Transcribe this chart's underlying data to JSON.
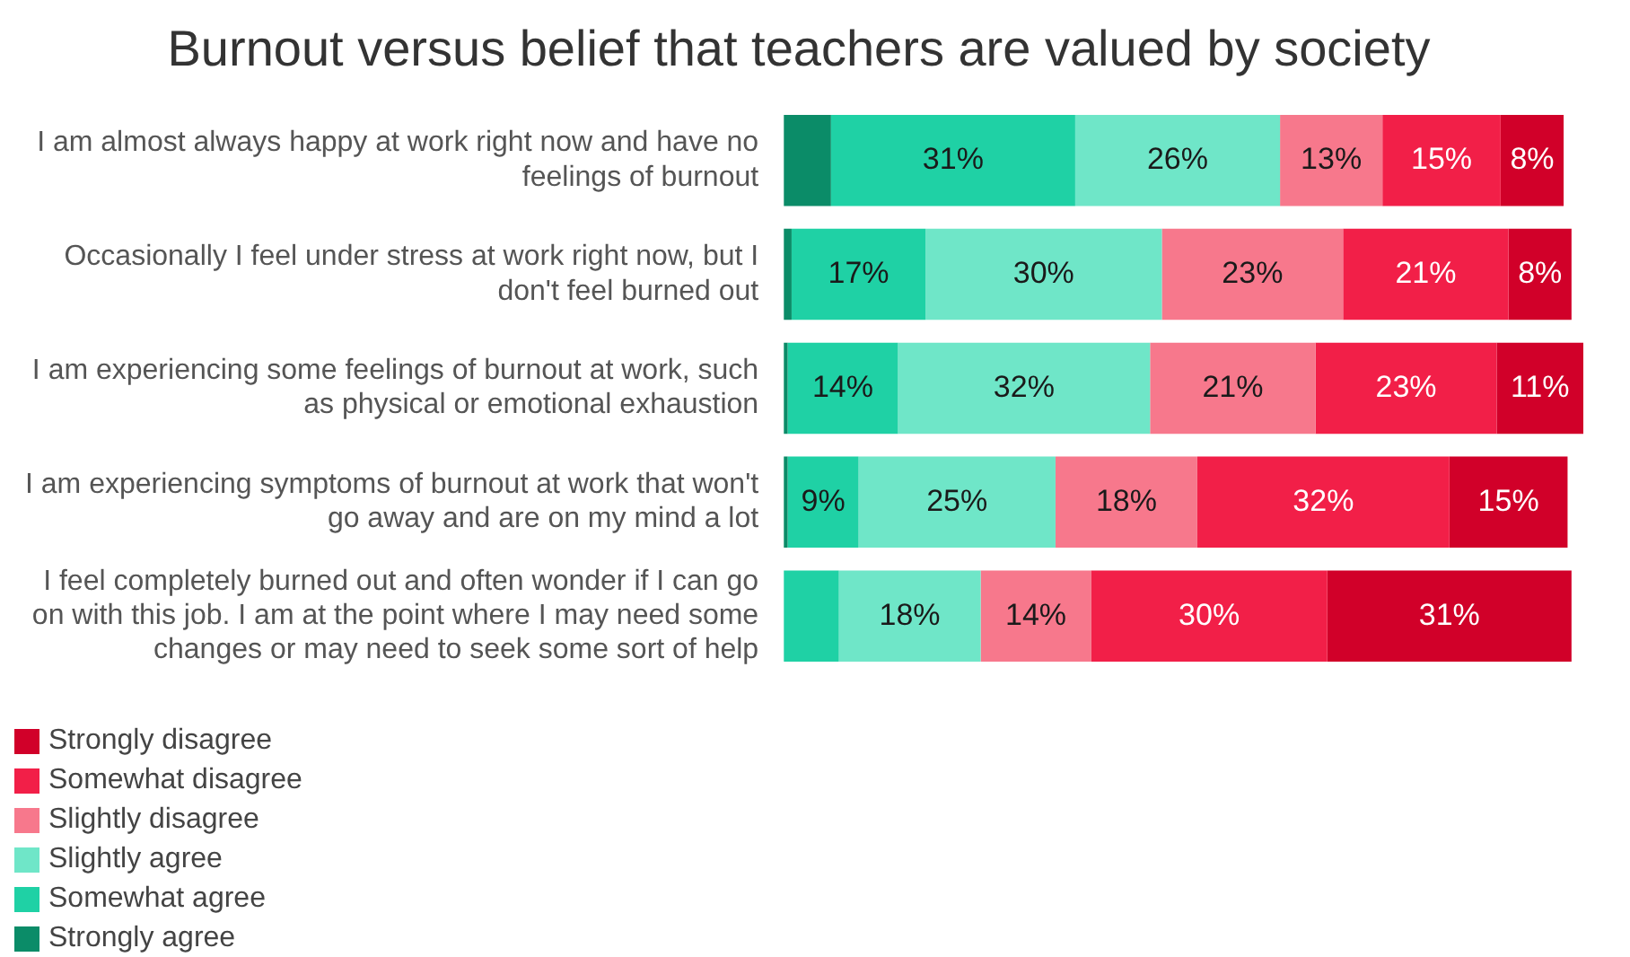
{
  "chart_data": {
    "type": "bar",
    "orientation": "horizontal",
    "stacked": true,
    "title": "Burnout versus belief that teachers are valued by society",
    "categories": [
      "I am almost always happy at work right now and have no feelings of burnout",
      "Occasionally I feel under stress at work right now, but I don't feel burned out",
      "I am experiencing some feelings of burnout at work, such as physical or emotional exhaustion",
      "I am experiencing symptoms of burnout at work that won't go away and are on my mind a lot",
      "I feel completely burned out and often wonder if I can go on with this job. I am at the point where I may need some changes or may need to seek some sort of help"
    ],
    "series": [
      {
        "name": "Strongly agree",
        "color": "#0b8c68",
        "values": [
          6,
          1,
          0.5,
          0.5,
          0
        ],
        "value_labels": [
          null,
          null,
          null,
          null,
          null
        ]
      },
      {
        "name": "Somewhat agree",
        "color": "#1fd1a5",
        "values": [
          31,
          17,
          14,
          9,
          7
        ],
        "value_labels": [
          "31%",
          "17%",
          "14%",
          "9%",
          null
        ]
      },
      {
        "name": "Slightly agree",
        "color": "#6fe6c8",
        "values": [
          26,
          30,
          32,
          25,
          18
        ],
        "value_labels": [
          "26%",
          "30%",
          "32%",
          "25%",
          "18%"
        ]
      },
      {
        "name": "Slightly disagree",
        "color": "#f7788c",
        "values": [
          13,
          23,
          21,
          18,
          14
        ],
        "value_labels": [
          "13%",
          "23%",
          "21%",
          "18%",
          "14%"
        ]
      },
      {
        "name": "Somewhat disagree",
        "color": "#f21f48",
        "values": [
          15,
          21,
          23,
          32,
          30
        ],
        "value_labels": [
          "15%",
          "21%",
          "23%",
          "32%",
          "30%"
        ]
      },
      {
        "name": "Strongly disagree",
        "color": "#d10029",
        "values": [
          8,
          8,
          11,
          15,
          31
        ],
        "value_labels": [
          "8%",
          "8%",
          "11%",
          "15%",
          "31%"
        ]
      }
    ],
    "tick_labels": "y",
    "legend": "bottom left"
  }
}
